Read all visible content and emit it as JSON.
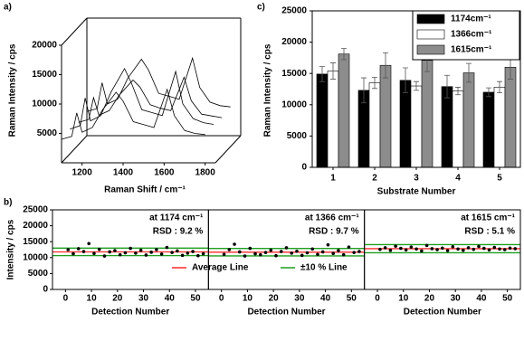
{
  "chart_data": [
    {
      "type": "line",
      "panel_label": "a)",
      "ylabel": "Raman Intensity / cps",
      "xlabel": "Raman Shift / cm⁻¹",
      "x": [
        1100,
        1150,
        1174,
        1200,
        1250,
        1300,
        1366,
        1400,
        1450,
        1500,
        1550,
        1615,
        1650,
        1700,
        1750,
        1800
      ],
      "xlim": [
        1100,
        1850
      ],
      "xticks": [
        1200,
        1400,
        1600,
        1800
      ],
      "ylim": [
        0,
        20000
      ],
      "yticks": [
        5000,
        10000,
        15000,
        20000
      ],
      "series": [
        {
          "color": "#000000",
          "values": [
            4000,
            4500,
            8500,
            5200,
            6000,
            9000,
            12000,
            10500,
            7000,
            6500,
            6000,
            12500,
            8000,
            5500,
            5000,
            4800
          ]
        },
        {
          "color": "#000000",
          "values": [
            4200,
            4800,
            9500,
            5600,
            6500,
            10500,
            14500,
            12000,
            7500,
            7000,
            6500,
            14000,
            8500,
            6000,
            5300,
            5000
          ]
        },
        {
          "color": "#000000",
          "values": [
            3800,
            4300,
            8000,
            5000,
            5800,
            8500,
            11000,
            9800,
            6800,
            6200,
            5800,
            11500,
            7500,
            5200,
            4900,
            4600
          ]
        },
        {
          "color": "#000000",
          "values": [
            4100,
            4600,
            9000,
            5400,
            6200,
            9800,
            13000,
            11200,
            7200,
            6700,
            6200,
            13200,
            8200,
            5700,
            5100,
            4900
          ]
        }
      ]
    },
    {
      "type": "bar",
      "panel_label": "c)",
      "ylabel": "Raman Intensity / cps",
      "xlabel": "Substrate Number",
      "categories": [
        "1",
        "2",
        "3",
        "4",
        "5"
      ],
      "ylim": [
        0,
        25000
      ],
      "yticks": [
        0,
        5000,
        10000,
        15000,
        20000,
        25000
      ],
      "series": [
        {
          "name": "1174cm⁻¹",
          "color": "#000000",
          "values": [
            14900,
            12300,
            13900,
            12900,
            12000
          ],
          "errors": [
            1200,
            2000,
            2000,
            1800,
            700
          ]
        },
        {
          "name": "1366cm⁻¹",
          "color": "#ffffff",
          "values": [
            15400,
            13500,
            13000,
            12200,
            12800
          ],
          "errors": [
            1300,
            900,
            700,
            600,
            900
          ]
        },
        {
          "name": "1615cm⁻¹",
          "color": "#8c8c8c",
          "values": [
            18100,
            16300,
            17100,
            15100,
            16000
          ],
          "errors": [
            900,
            2000,
            1800,
            1500,
            1900
          ]
        }
      ]
    },
    {
      "type": "scatter",
      "panel_label": "b)",
      "ylabel": "Intensity / cps",
      "ylim": [
        0,
        25000
      ],
      "yticks": [
        0,
        5000,
        10000,
        15000,
        20000,
        25000
      ],
      "xlim": [
        -5,
        55
      ],
      "xticks": [
        0,
        10,
        20,
        30,
        40,
        50
      ],
      "legend": [
        {
          "name": "Average Line",
          "color": "#ff2a2a"
        },
        {
          "name": "±10 % Line",
          "color": "#1e9e1e"
        }
      ],
      "panels": [
        {
          "annotation": "at 1174 cm⁻¹",
          "rsd": "RSD : 9.2 %",
          "xlabel": "Detection Number",
          "average": 11800,
          "band": [
            10620,
            12980
          ],
          "x": [
            1,
            3,
            5,
            7,
            9,
            11,
            13,
            15,
            17,
            19,
            21,
            23,
            25,
            27,
            29,
            31,
            33,
            35,
            37,
            39,
            41,
            43,
            45,
            47,
            49,
            51,
            53
          ],
          "values": [
            12500,
            11200,
            12800,
            11900,
            14400,
            11300,
            12600,
            10500,
            11800,
            12200,
            10900,
            11500,
            12900,
            11400,
            12300,
            10800,
            11700,
            12500,
            11100,
            13200,
            11600,
            12100,
            10700,
            11400,
            11900,
            10600,
            11200
          ]
        },
        {
          "annotation": "at 1366 cm⁻¹",
          "rsd": "RSD : 9.7 %",
          "xlabel": "Detection Number",
          "average": 11700,
          "band": [
            10530,
            12870
          ],
          "x": [
            1,
            3,
            5,
            7,
            9,
            11,
            13,
            15,
            17,
            19,
            21,
            23,
            25,
            27,
            29,
            31,
            33,
            35,
            37,
            39,
            41,
            43,
            45,
            47,
            49,
            51,
            53
          ],
          "values": [
            11000,
            12500,
            14200,
            11800,
            10500,
            12900,
            11200,
            10900,
            11600,
            12300,
            10600,
            11900,
            13100,
            11400,
            12000,
            10700,
            11500,
            12700,
            11000,
            11800,
            14000,
            11300,
            12200,
            10900,
            13300,
            11600,
            11900
          ]
        },
        {
          "annotation": "at 1615 cm⁻¹",
          "rsd": "RSD : 5.1 %",
          "xlabel": "Detection Number",
          "average": 12800,
          "band": [
            11520,
            14080
          ],
          "x": [
            1,
            3,
            5,
            7,
            9,
            11,
            13,
            15,
            17,
            19,
            21,
            23,
            25,
            27,
            29,
            31,
            33,
            35,
            37,
            39,
            41,
            43,
            45,
            47,
            49,
            51,
            53
          ],
          "values": [
            12600,
            13100,
            12300,
            13600,
            12900,
            12400,
            13300,
            12700,
            12100,
            13800,
            12800,
            12500,
            13000,
            12200,
            13400,
            12700,
            12300,
            13100,
            12600,
            13500,
            12900,
            12400,
            13200,
            12700,
            12500,
            13000,
            12800
          ]
        }
      ]
    }
  ]
}
